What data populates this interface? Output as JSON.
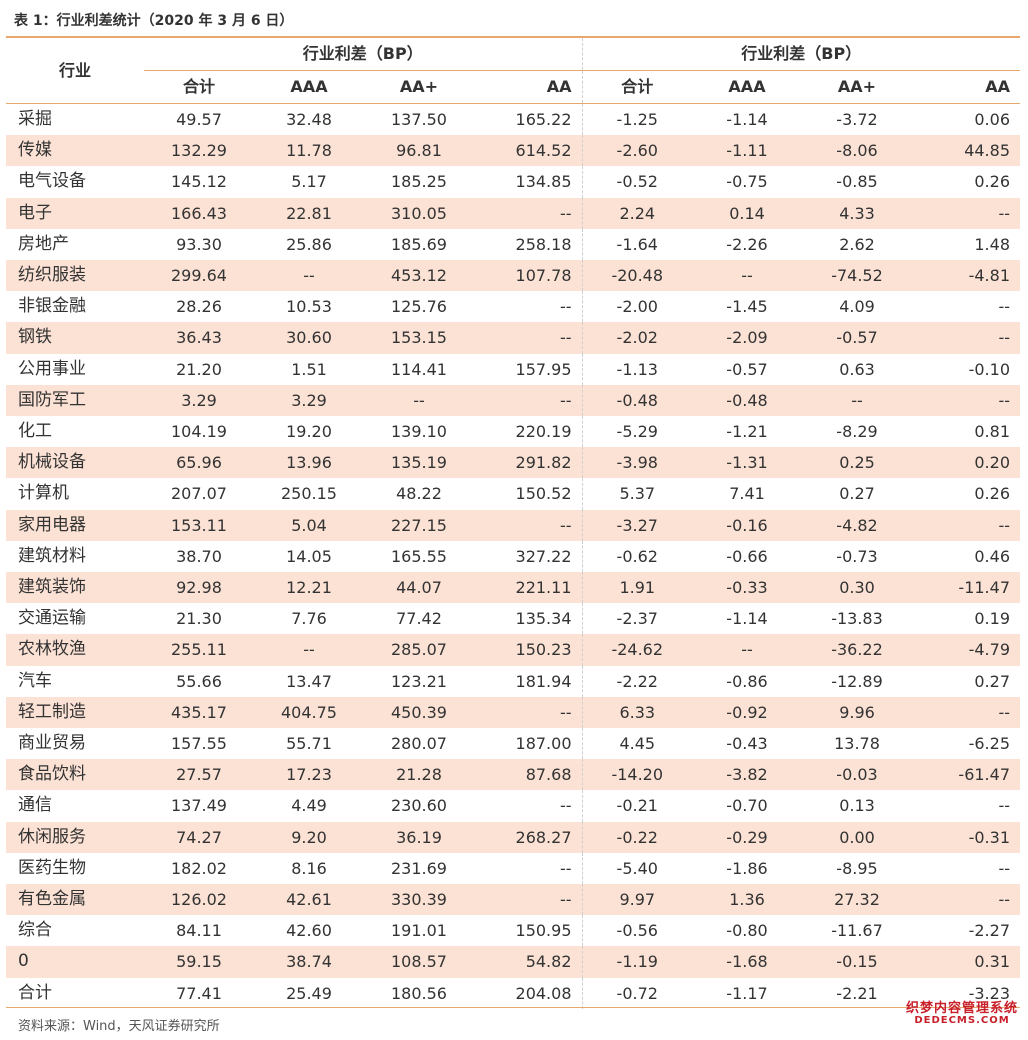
{
  "title": "表 1：行业利差统计（2020 年 3 月 6 日）",
  "header": {
    "industry_label": "行业",
    "group1": "行业利差（BP）",
    "group2": "行业利差（BP）",
    "sub": [
      "合计",
      "AAA",
      "AA+",
      "AA",
      "合计",
      "AAA",
      "AA+",
      "AA"
    ]
  },
  "rows": [
    [
      "采掘",
      "49.57",
      "32.48",
      "137.50",
      "165.22",
      "-1.25",
      "-1.14",
      "-3.72",
      "0.06"
    ],
    [
      "传媒",
      "132.29",
      "11.78",
      "96.81",
      "614.52",
      "-2.60",
      "-1.11",
      "-8.06",
      "44.85"
    ],
    [
      "电气设备",
      "145.12",
      "5.17",
      "185.25",
      "134.85",
      "-0.52",
      "-0.75",
      "-0.85",
      "0.26"
    ],
    [
      "电子",
      "166.43",
      "22.81",
      "310.05",
      "--",
      "2.24",
      "0.14",
      "4.33",
      "--"
    ],
    [
      "房地产",
      "93.30",
      "25.86",
      "185.69",
      "258.18",
      "-1.64",
      "-2.26",
      "2.62",
      "1.48"
    ],
    [
      "纺织服装",
      "299.64",
      "--",
      "453.12",
      "107.78",
      "-20.48",
      "--",
      "-74.52",
      "-4.81"
    ],
    [
      "非银金融",
      "28.26",
      "10.53",
      "125.76",
      "--",
      "-2.00",
      "-1.45",
      "4.09",
      "--"
    ],
    [
      "钢铁",
      "36.43",
      "30.60",
      "153.15",
      "--",
      "-2.02",
      "-2.09",
      "-0.57",
      "--"
    ],
    [
      "公用事业",
      "21.20",
      "1.51",
      "114.41",
      "157.95",
      "-1.13",
      "-0.57",
      "0.63",
      "-0.10"
    ],
    [
      "国防军工",
      "3.29",
      "3.29",
      "--",
      "--",
      "-0.48",
      "-0.48",
      "--",
      "--"
    ],
    [
      "化工",
      "104.19",
      "19.20",
      "139.10",
      "220.19",
      "-5.29",
      "-1.21",
      "-8.29",
      "0.81"
    ],
    [
      "机械设备",
      "65.96",
      "13.96",
      "135.19",
      "291.82",
      "-3.98",
      "-1.31",
      "0.25",
      "0.20"
    ],
    [
      "计算机",
      "207.07",
      "250.15",
      "48.22",
      "150.52",
      "5.37",
      "7.41",
      "0.27",
      "0.26"
    ],
    [
      "家用电器",
      "153.11",
      "5.04",
      "227.15",
      "--",
      "-3.27",
      "-0.16",
      "-4.82",
      "--"
    ],
    [
      "建筑材料",
      "38.70",
      "14.05",
      "165.55",
      "327.22",
      "-0.62",
      "-0.66",
      "-0.73",
      "0.46"
    ],
    [
      "建筑装饰",
      "92.98",
      "12.21",
      "44.07",
      "221.11",
      "1.91",
      "-0.33",
      "0.30",
      "-11.47"
    ],
    [
      "交通运输",
      "21.30",
      "7.76",
      "77.42",
      "135.34",
      "-2.37",
      "-1.14",
      "-13.83",
      "0.19"
    ],
    [
      "农林牧渔",
      "255.11",
      "--",
      "285.07",
      "150.23",
      "-24.62",
      "--",
      "-36.22",
      "-4.79"
    ],
    [
      "汽车",
      "55.66",
      "13.47",
      "123.21",
      "181.94",
      "-2.22",
      "-0.86",
      "-12.89",
      "0.27"
    ],
    [
      "轻工制造",
      "435.17",
      "404.75",
      "450.39",
      "--",
      "6.33",
      "-0.92",
      "9.96",
      "--"
    ],
    [
      "商业贸易",
      "157.55",
      "55.71",
      "280.07",
      "187.00",
      "4.45",
      "-0.43",
      "13.78",
      "-6.25"
    ],
    [
      "食品饮料",
      "27.57",
      "17.23",
      "21.28",
      "87.68",
      "-14.20",
      "-3.82",
      "-0.03",
      "-61.47"
    ],
    [
      "通信",
      "137.49",
      "4.49",
      "230.60",
      "--",
      "-0.21",
      "-0.70",
      "0.13",
      "--"
    ],
    [
      "休闲服务",
      "74.27",
      "9.20",
      "36.19",
      "268.27",
      "-0.22",
      "-0.29",
      "0.00",
      "-0.31"
    ],
    [
      "医药生物",
      "182.02",
      "8.16",
      "231.69",
      "--",
      "-5.40",
      "-1.86",
      "-8.95",
      "--"
    ],
    [
      "有色金属",
      "126.02",
      "42.61",
      "330.39",
      "--",
      "9.97",
      "1.36",
      "27.32",
      "--"
    ],
    [
      "综合",
      "84.11",
      "42.60",
      "191.01",
      "150.95",
      "-0.56",
      "-0.80",
      "-11.67",
      "-2.27"
    ],
    [
      "0",
      "59.15",
      "38.74",
      "108.57",
      "54.82",
      "-1.19",
      "-1.68",
      "-0.15",
      "0.31"
    ],
    [
      "合计",
      "77.41",
      "25.49",
      "180.56",
      "204.08",
      "-0.72",
      "-1.17",
      "-2.21",
      "-3.23"
    ]
  ],
  "source": "资料来源：Wind，天风证券研究所",
  "watermark": {
    "line1": "织梦内容管理系统",
    "line2": "DEDECMS.COM"
  },
  "colors": {
    "accent": "#e8a86b",
    "shade": "#fbe2d5",
    "watermark": "#c8202a"
  }
}
